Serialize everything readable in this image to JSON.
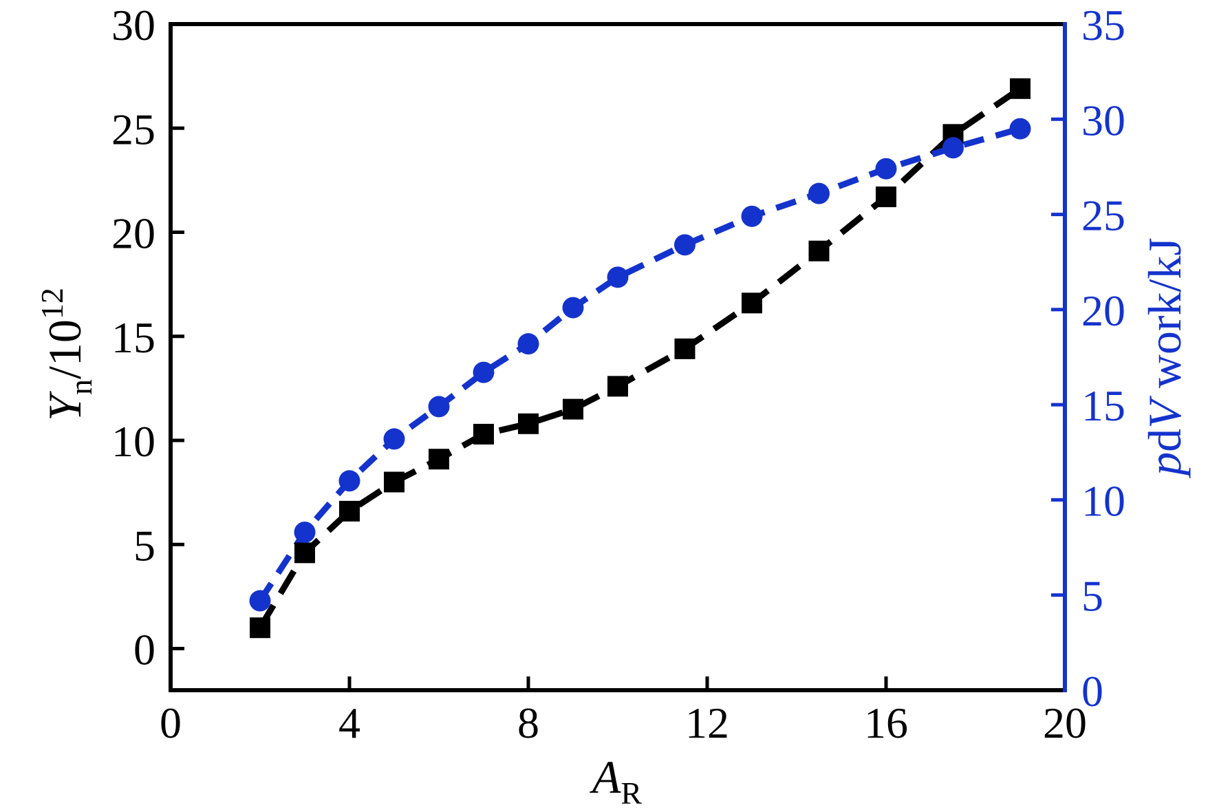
{
  "chart_data": {
    "type": "line",
    "title": "",
    "x": [
      2,
      3,
      4,
      5,
      6,
      7,
      8,
      9,
      10,
      11.5,
      13,
      14.5,
      16,
      17.5,
      19
    ],
    "series": [
      {
        "name": "neutron-yield",
        "label": "Yn/10^12",
        "axis": "left",
        "color": "#000000",
        "marker": "square",
        "marker_size": 30,
        "line": "dashed",
        "dash": [
          38,
          20
        ],
        "values": [
          1.0,
          4.6,
          6.6,
          8.0,
          9.1,
          10.3,
          10.8,
          11.5,
          12.6,
          14.4,
          16.6,
          19.1,
          21.7,
          24.7,
          26.9
        ]
      },
      {
        "name": "pdv-work",
        "label": "pdV work/kJ",
        "axis": "right",
        "color": "#1433cd",
        "marker": "circle",
        "marker_size": 31,
        "line": "dashed",
        "dash": [
          30,
          18
        ],
        "values": [
          4.7,
          8.3,
          11.0,
          13.2,
          14.9,
          16.7,
          18.2,
          20.1,
          21.7,
          23.4,
          24.9,
          26.1,
          27.4,
          28.5,
          29.5
        ]
      }
    ],
    "xlabel": "AR",
    "ylabel_left": "Yn/10^12",
    "ylabel_right": "pdV work/kJ",
    "label_parts": {
      "xlabel": [
        {
          "t": "A",
          "italic": true
        },
        {
          "t": "R",
          "pos": "sub"
        }
      ],
      "ylabel_left": [
        {
          "t": "Y",
          "italic": true
        },
        {
          "t": "n",
          "pos": "sub"
        },
        {
          "t": "/10"
        },
        {
          "t": "12",
          "pos": "sup"
        }
      ],
      "ylabel_right": [
        {
          "t": "p",
          "italic": true
        },
        {
          "t": "d"
        },
        {
          "t": "V",
          "italic": true
        },
        {
          "t": " work/kJ"
        }
      ]
    },
    "xlim": [
      0,
      20
    ],
    "ylim_left": [
      -2,
      30
    ],
    "ylim_right": [
      0,
      35
    ],
    "xticks": [
      0,
      4,
      8,
      12,
      16,
      20
    ],
    "yticks_left": [
      0,
      5,
      10,
      15,
      20,
      25,
      30
    ],
    "yticks_right": [
      0,
      5,
      10,
      15,
      20,
      25,
      30,
      35
    ],
    "grid": false,
    "legend": "none",
    "axis_colors": {
      "left": "#000000",
      "bottom": "#000000",
      "top": "#000000",
      "right": "#1433cd"
    }
  }
}
